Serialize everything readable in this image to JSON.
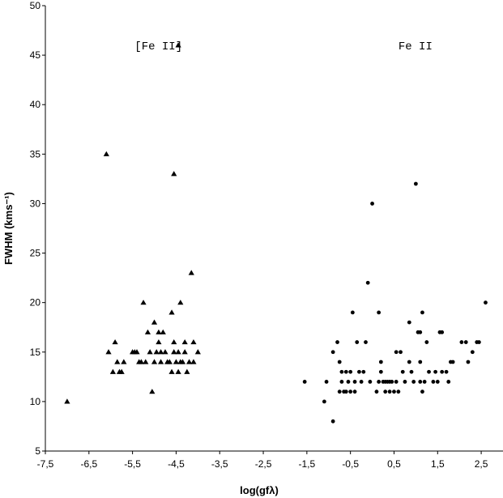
{
  "chart_data": {
    "type": "scatter",
    "title": "",
    "xlabel": "log(gfλ)",
    "ylabel": "FWHM (kms⁻¹)",
    "xlim": [
      -7.5,
      3
    ],
    "ylim": [
      5,
      50
    ],
    "x_ticks": [
      -7.5,
      -6.5,
      -5.5,
      -4.5,
      -3.5,
      -2.5,
      -1.5,
      -0.5,
      0.5,
      1.5,
      2.5
    ],
    "x_tick_labels": [
      "-7,5",
      "-6,5",
      "-5,5",
      "-4,5",
      "-3,5",
      "-2,5",
      "-1,5",
      "-0,5",
      "0,5",
      "1,5",
      "2,5"
    ],
    "y_ticks": [
      5,
      10,
      15,
      20,
      25,
      30,
      35,
      40,
      45,
      50
    ],
    "y_tick_labels": [
      "5",
      "10",
      "15",
      "20",
      "25",
      "30",
      "35",
      "40",
      "45",
      "50"
    ],
    "grid": false,
    "annotations": [
      {
        "text": "[Fe II]",
        "x": -5.45,
        "y": 46
      },
      {
        "text": "Fe II",
        "x": 0.6,
        "y": 46
      }
    ],
    "series": [
      {
        "marker": "triangle",
        "color": "#000000",
        "points": [
          [
            -7.0,
            10
          ],
          [
            -6.1,
            35
          ],
          [
            -6.05,
            15
          ],
          [
            -5.9,
            16
          ],
          [
            -5.95,
            13
          ],
          [
            -5.85,
            14
          ],
          [
            -5.8,
            13
          ],
          [
            -5.75,
            13
          ],
          [
            -5.7,
            14
          ],
          [
            -5.5,
            15
          ],
          [
            -5.45,
            15
          ],
          [
            -5.4,
            15
          ],
          [
            -5.35,
            14
          ],
          [
            -5.3,
            14
          ],
          [
            -5.25,
            20
          ],
          [
            -5.2,
            14
          ],
          [
            -5.15,
            17
          ],
          [
            -5.1,
            15
          ],
          [
            -5.05,
            11
          ],
          [
            -5.0,
            18
          ],
          [
            -5.0,
            14
          ],
          [
            -4.95,
            15
          ],
          [
            -4.9,
            16
          ],
          [
            -4.9,
            17
          ],
          [
            -4.85,
            15
          ],
          [
            -4.85,
            14
          ],
          [
            -4.8,
            17
          ],
          [
            -4.75,
            15
          ],
          [
            -4.7,
            14
          ],
          [
            -4.65,
            14
          ],
          [
            -4.6,
            19
          ],
          [
            -4.6,
            13
          ],
          [
            -4.55,
            33
          ],
          [
            -4.55,
            15
          ],
          [
            -4.55,
            16
          ],
          [
            -4.5,
            14
          ],
          [
            -4.45,
            13
          ],
          [
            -4.45,
            15
          ],
          [
            -4.4,
            20
          ],
          [
            -4.4,
            14
          ],
          [
            -4.35,
            14
          ],
          [
            -4.3,
            16
          ],
          [
            -4.3,
            15
          ],
          [
            -4.25,
            13
          ],
          [
            -4.2,
            14
          ],
          [
            -4.15,
            23
          ],
          [
            -4.1,
            16
          ],
          [
            -4.1,
            14
          ],
          [
            -4.0,
            15
          ],
          [
            -4.45,
            46
          ]
        ]
      },
      {
        "marker": "circle",
        "color": "#000000",
        "points": [
          [
            -1.55,
            12
          ],
          [
            -1.1,
            10
          ],
          [
            -1.05,
            12
          ],
          [
            -0.9,
            8
          ],
          [
            -0.9,
            15
          ],
          [
            -0.8,
            16
          ],
          [
            -0.75,
            11
          ],
          [
            -0.75,
            14
          ],
          [
            -0.7,
            12
          ],
          [
            -0.7,
            13
          ],
          [
            -0.65,
            11
          ],
          [
            -0.6,
            11
          ],
          [
            -0.6,
            13
          ],
          [
            -0.55,
            12
          ],
          [
            -0.5,
            11
          ],
          [
            -0.5,
            13
          ],
          [
            -0.45,
            19
          ],
          [
            -0.4,
            12
          ],
          [
            -0.4,
            11
          ],
          [
            -0.35,
            16
          ],
          [
            -0.3,
            13
          ],
          [
            -0.25,
            12
          ],
          [
            -0.2,
            13
          ],
          [
            -0.15,
            16
          ],
          [
            -0.1,
            22
          ],
          [
            -0.05,
            12
          ],
          [
            0.0,
            30
          ],
          [
            0.1,
            11
          ],
          [
            0.15,
            19
          ],
          [
            0.15,
            12
          ],
          [
            0.2,
            14
          ],
          [
            0.2,
            13
          ],
          [
            0.25,
            12
          ],
          [
            0.3,
            11
          ],
          [
            0.3,
            12
          ],
          [
            0.35,
            12
          ],
          [
            0.4,
            11
          ],
          [
            0.4,
            12
          ],
          [
            0.45,
            12
          ],
          [
            0.5,
            11
          ],
          [
            0.55,
            15
          ],
          [
            0.55,
            12
          ],
          [
            0.6,
            11
          ],
          [
            0.65,
            15
          ],
          [
            0.7,
            13
          ],
          [
            0.75,
            12
          ],
          [
            0.85,
            14
          ],
          [
            0.85,
            18
          ],
          [
            0.9,
            13
          ],
          [
            0.95,
            12
          ],
          [
            1.0,
            32
          ],
          [
            1.05,
            17
          ],
          [
            1.1,
            14
          ],
          [
            1.1,
            12
          ],
          [
            1.1,
            17
          ],
          [
            1.15,
            11
          ],
          [
            1.15,
            19
          ],
          [
            1.2,
            12
          ],
          [
            1.25,
            16
          ],
          [
            1.3,
            13
          ],
          [
            1.4,
            12
          ],
          [
            1.45,
            13
          ],
          [
            1.5,
            12
          ],
          [
            1.55,
            17
          ],
          [
            1.6,
            17
          ],
          [
            1.6,
            13
          ],
          [
            1.7,
            13
          ],
          [
            1.75,
            12
          ],
          [
            1.8,
            14
          ],
          [
            1.85,
            14
          ],
          [
            2.05,
            16
          ],
          [
            2.15,
            16
          ],
          [
            2.2,
            14
          ],
          [
            2.3,
            15
          ],
          [
            2.4,
            16
          ],
          [
            2.45,
            16
          ],
          [
            2.6,
            20
          ]
        ]
      }
    ]
  }
}
